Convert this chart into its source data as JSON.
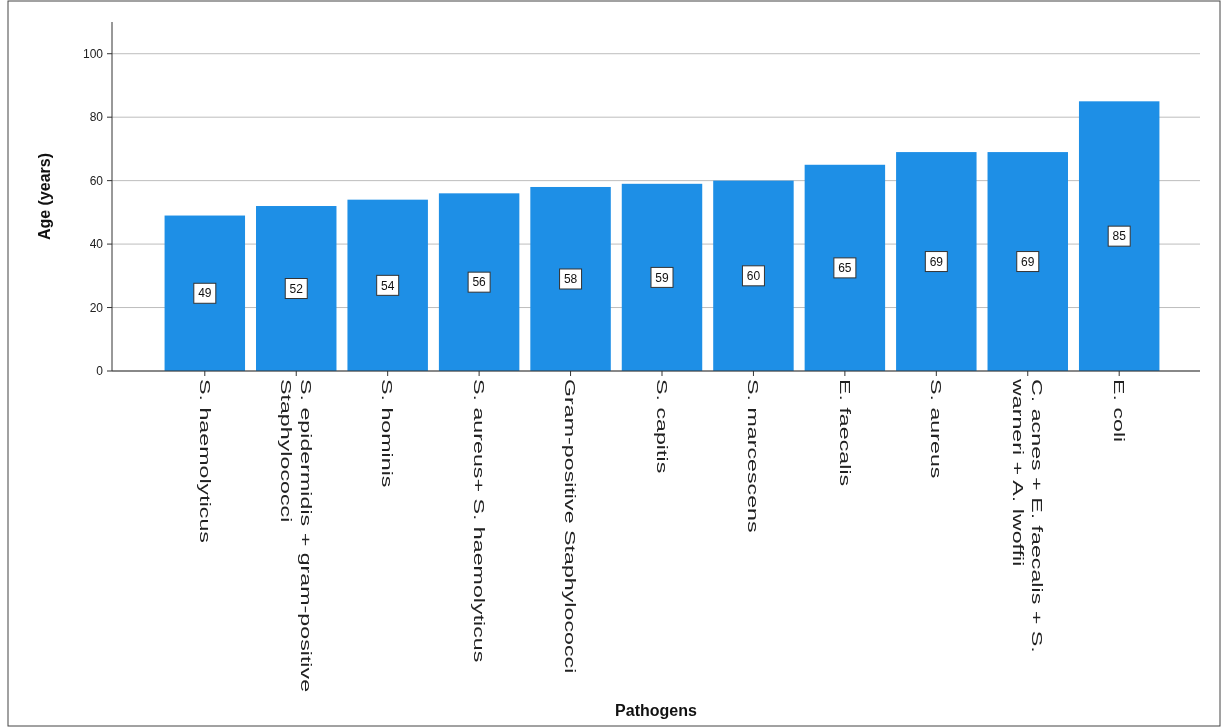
{
  "chart_data": {
    "type": "bar",
    "xlabel": "Pathogens",
    "ylabel": "Age (years)",
    "categories": [
      "S. haemolyticus",
      "S. epidermidis + gram-positive Staphylococci",
      "S. hominis",
      "S. aureus+ S. haemolyticus",
      "Gram-positive Staphylococci",
      "S. capitis",
      "S. marcescens",
      "E. faecalis",
      "S. aureus",
      "C. acnes + E. faecalis + S. warneri + A. lwoffii",
      "E. coli"
    ],
    "values": [
      49,
      52,
      54,
      56,
      58,
      59,
      60,
      65,
      69,
      69,
      85
    ],
    "color": "#1e8fe6",
    "ylim": [
      0,
      110
    ],
    "yticks": [
      0,
      20,
      40,
      60,
      80,
      100
    ],
    "grid": "y",
    "data_labels": true
  }
}
